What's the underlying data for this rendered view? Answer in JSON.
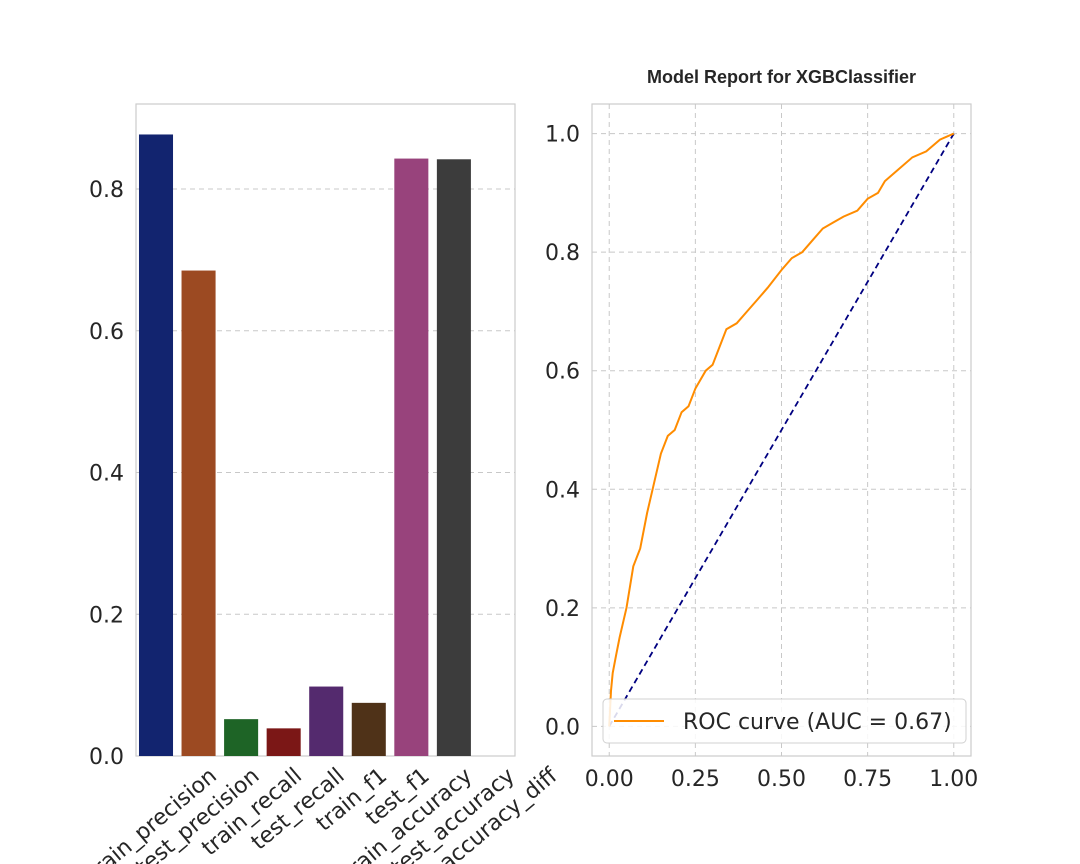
{
  "chart_data": [
    {
      "type": "bar",
      "title": "",
      "xlabel": "",
      "ylabel": "",
      "categories": [
        "train_precision",
        "test_precision",
        "train_recall",
        "test_recall",
        "train_f1",
        "test_f1",
        "train_accuracy",
        "test_accuracy",
        "accuracy_diff"
      ],
      "values": [
        0.877,
        0.685,
        0.052,
        0.039,
        0.098,
        0.075,
        0.843,
        0.842,
        0.0
      ],
      "colors": [
        "#12246f",
        "#9c4a22",
        "#1e6426",
        "#7b1716",
        "#542a6e",
        "#4f3218",
        "#98437c",
        "#3c3c3c",
        "#3c3c3c"
      ],
      "ylim": [
        0,
        0.92
      ],
      "yticks": [
        "0.0",
        "0.2",
        "0.4",
        "0.6",
        "0.8"
      ],
      "grid": "y-dashed"
    },
    {
      "type": "line",
      "title": "Model Report for XGBClassifier",
      "xlabel": "",
      "ylabel": "",
      "xlim": [
        -0.05,
        1.05
      ],
      "ylim": [
        -0.05,
        1.05
      ],
      "xticks": [
        "0.00",
        "0.25",
        "0.50",
        "0.75",
        "1.00"
      ],
      "yticks": [
        "0.0",
        "0.2",
        "0.4",
        "0.6",
        "0.8",
        "1.0"
      ],
      "grid": "dashed",
      "legend_position": "lower-right",
      "series": [
        {
          "name": "ROC curve (AUC = 0.67)",
          "color": "#ff8c00",
          "x": [
            0.0,
            0.005,
            0.01,
            0.02,
            0.03,
            0.05,
            0.07,
            0.09,
            0.11,
            0.13,
            0.15,
            0.17,
            0.19,
            0.21,
            0.23,
            0.25,
            0.28,
            0.3,
            0.32,
            0.34,
            0.37,
            0.4,
            0.43,
            0.46,
            0.5,
            0.53,
            0.56,
            0.59,
            0.62,
            0.65,
            0.68,
            0.72,
            0.75,
            0.78,
            0.8,
            0.84,
            0.88,
            0.92,
            0.96,
            1.0
          ],
          "y": [
            0.0,
            0.06,
            0.09,
            0.12,
            0.15,
            0.2,
            0.27,
            0.3,
            0.36,
            0.41,
            0.46,
            0.49,
            0.5,
            0.53,
            0.54,
            0.57,
            0.6,
            0.61,
            0.64,
            0.67,
            0.68,
            0.7,
            0.72,
            0.74,
            0.77,
            0.79,
            0.8,
            0.82,
            0.84,
            0.85,
            0.86,
            0.87,
            0.89,
            0.9,
            0.92,
            0.94,
            0.96,
            0.97,
            0.99,
            1.0
          ]
        },
        {
          "name": "",
          "color": "#000080",
          "style": "dashed",
          "x": [
            0,
            1
          ],
          "y": [
            0,
            1
          ]
        }
      ]
    }
  ]
}
